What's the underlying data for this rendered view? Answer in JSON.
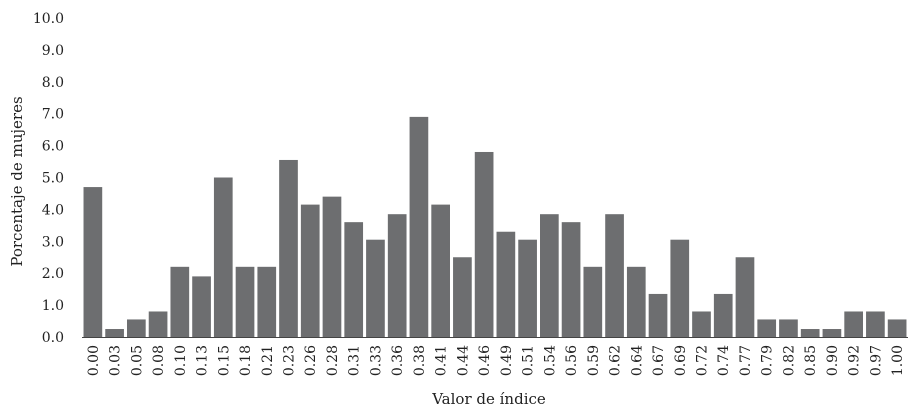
{
  "chart_data": {
    "type": "bar",
    "title": "",
    "xlabel": "Valor de índice",
    "ylabel": "Porcentaje de mujeres",
    "ylim": [
      0,
      10
    ],
    "yticks": [
      "0.0",
      "1.0",
      "2.0",
      "3.0",
      "4.0",
      "5.0",
      "6.0",
      "7.0",
      "8.0",
      "9.0",
      "10.0"
    ],
    "grid": false,
    "legend": "none",
    "bar_color": "#6d6e70",
    "categories": [
      "0.00",
      "0.03",
      "0.05",
      "0.08",
      "0.10",
      "0.13",
      "0.15",
      "0.18",
      "0.21",
      "0.23",
      "0.26",
      "0.28",
      "0.31",
      "0.33",
      "0.36",
      "0.38",
      "0.41",
      "0.44",
      "0.46",
      "0.49",
      "0.51",
      "0.54",
      "0.56",
      "0.59",
      "0.62",
      "0.64",
      "0.67",
      "0.69",
      "0.72",
      "0.74",
      "0.77",
      "0.79",
      "0.82",
      "0.85",
      "0.90",
      "0.92",
      "0.97",
      "1.00"
    ],
    "values": [
      4.7,
      0.25,
      0.55,
      0.8,
      2.2,
      1.9,
      5.0,
      2.2,
      2.2,
      5.55,
      4.15,
      4.4,
      3.6,
      3.05,
      3.85,
      6.9,
      4.15,
      2.5,
      5.8,
      3.3,
      3.05,
      3.85,
      3.6,
      2.2,
      3.85,
      2.2,
      1.35,
      3.05,
      0.8,
      1.35,
      2.5,
      0.55,
      0.55,
      0.25,
      0.25,
      0.8,
      0.8,
      0.55
    ]
  }
}
